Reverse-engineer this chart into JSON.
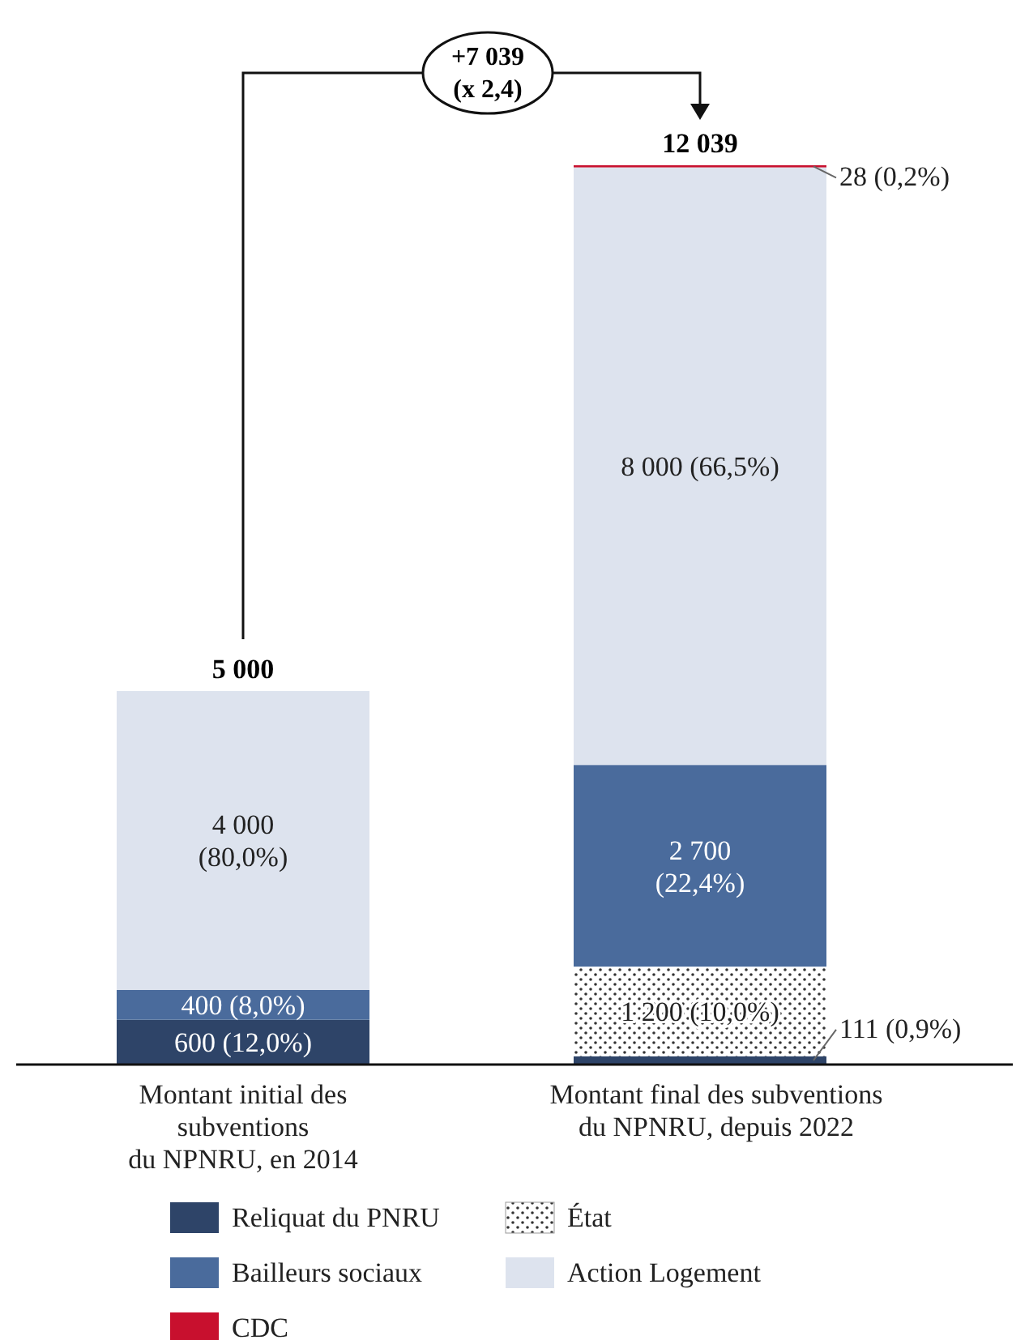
{
  "chart_data": {
    "type": "bar",
    "stacked": true,
    "categories": [
      "Montant initial des\nsubventions\ndu NPNRU, en 2014",
      "Montant final des subventions\ndu NPNRU, depuis 2022"
    ],
    "series": [
      {
        "name": "Reliquat du PNRU",
        "color": "#2e4468",
        "values": [
          600,
          111
        ],
        "value_labels": [
          "600 (12,0%)",
          "111 (0,9%)"
        ]
      },
      {
        "name": "État",
        "color": "#ffffff",
        "values": [
          0,
          1200
        ],
        "value_labels": [
          null,
          "1 200 (10,0%)"
        ]
      },
      {
        "name": "Bailleurs sociaux",
        "color": "#4a6b9c",
        "values": [
          400,
          2700
        ],
        "value_labels": [
          "400 (8,0%)",
          "2 700\n(22,4%)"
        ]
      },
      {
        "name": "Action Logement",
        "color": "#dde3ee",
        "values": [
          4000,
          8000
        ],
        "value_labels": [
          "4 000\n(80,0%)",
          "8 000 (66,5%)"
        ]
      },
      {
        "name": "CDC",
        "color": "#c8102e",
        "values": [
          0,
          28
        ],
        "value_labels": [
          null,
          "28 (0,2%)"
        ]
      }
    ],
    "totals": [
      "5 000",
      "12 039"
    ],
    "annotations": [
      "+7 039\n(x 2,4)"
    ],
    "legend": "bottom"
  }
}
